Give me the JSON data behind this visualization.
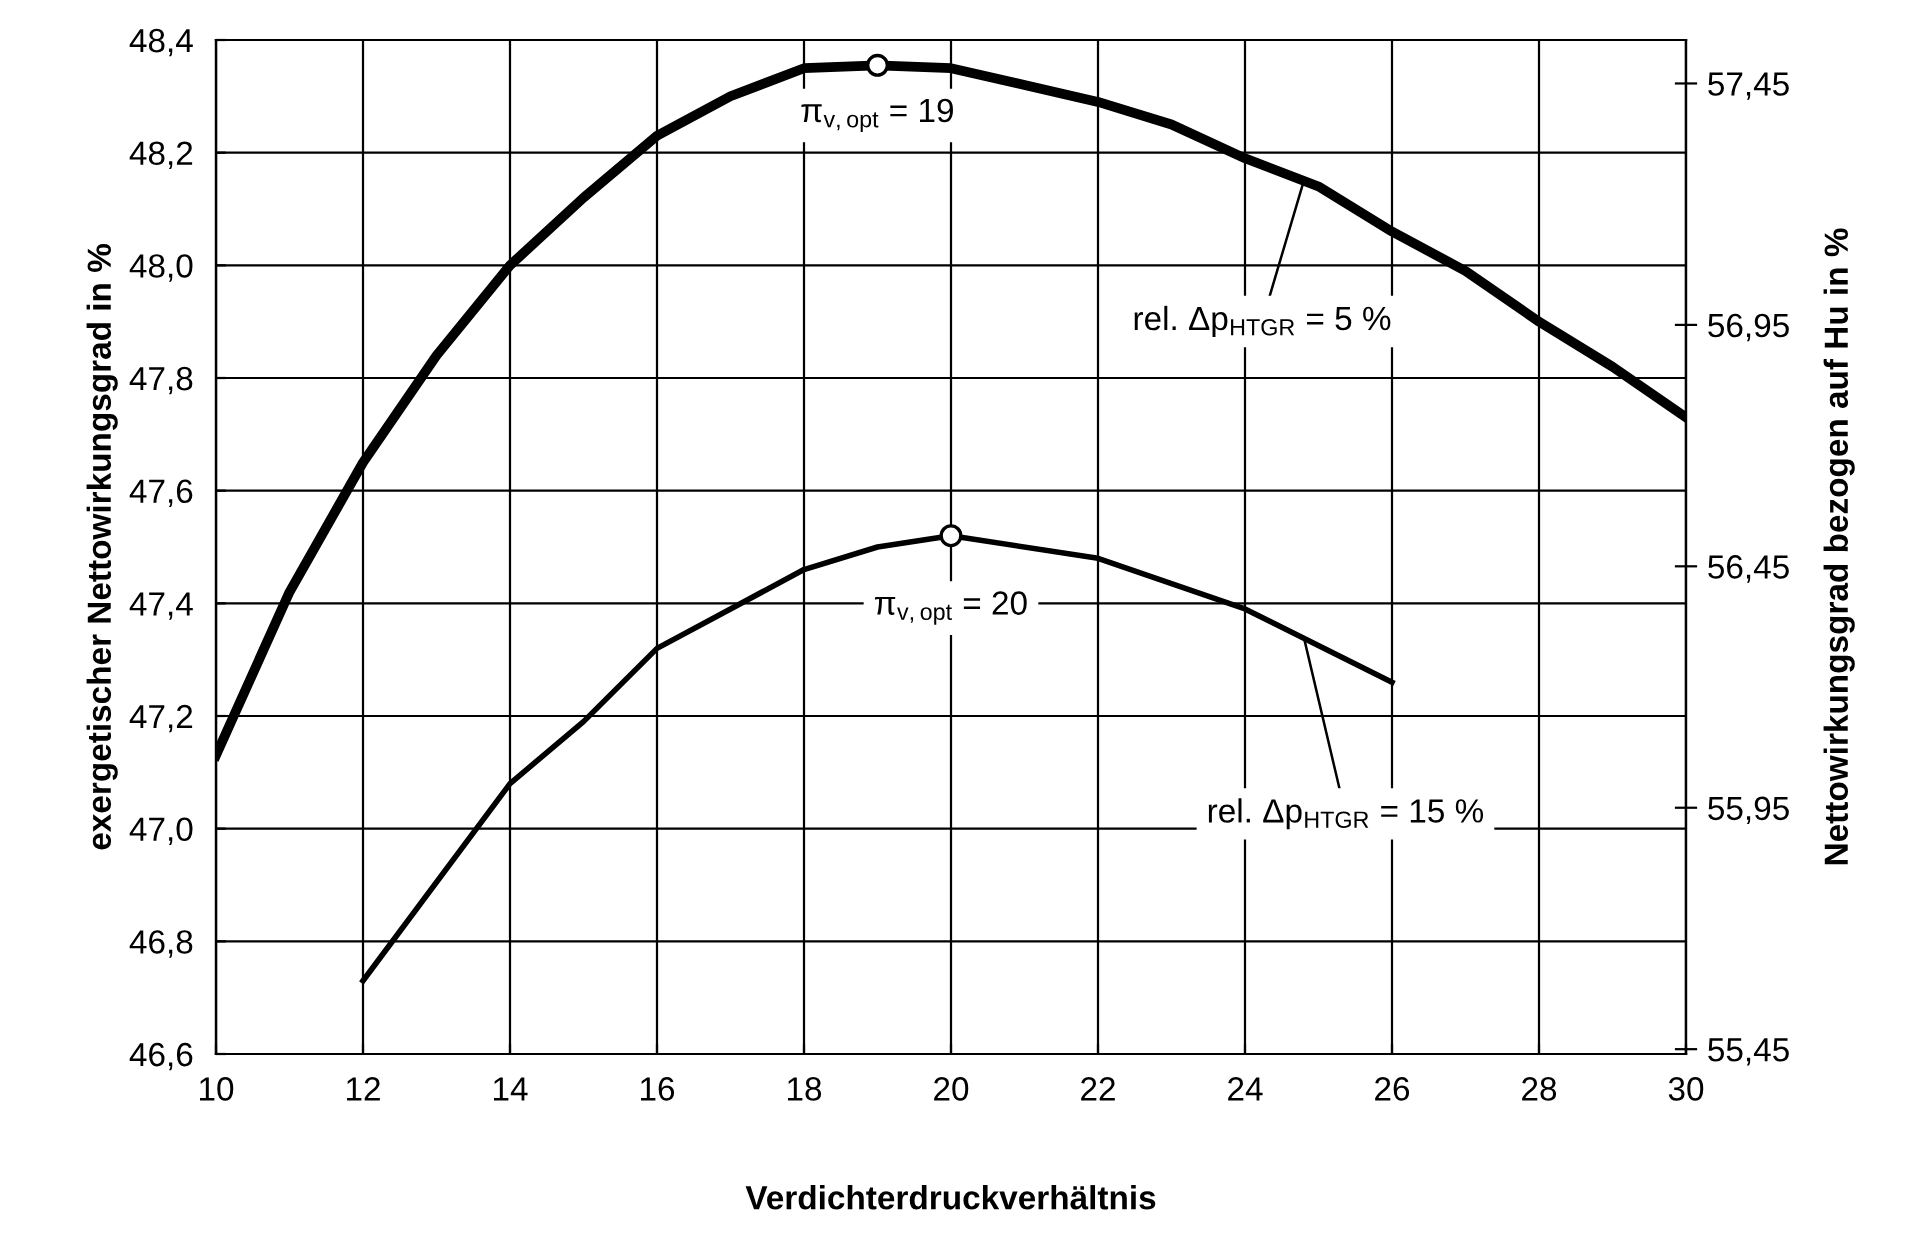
{
  "chart_data": {
    "type": "line",
    "xlabel": "Verdichterdruckverhältnis",
    "ylabel": "exergetischer Nettowirkungsgrad in %",
    "y2label": "Nettowirkungsgrad bezogen auf Hu in %",
    "xlim": [
      10,
      30
    ],
    "xticks": [
      10,
      12,
      14,
      16,
      18,
      20,
      22,
      24,
      26,
      28,
      30
    ],
    "ylim": [
      46.6,
      48.4
    ],
    "yticks": [
      {
        "value": 46.6,
        "label": "46,6"
      },
      {
        "value": 46.8,
        "label": "46,8"
      },
      {
        "value": 47.0,
        "label": "47,0"
      },
      {
        "value": 47.2,
        "label": "47,2"
      },
      {
        "value": 47.4,
        "label": "47,4"
      },
      {
        "value": 47.6,
        "label": "47,6"
      },
      {
        "value": 47.8,
        "label": "47,8"
      },
      {
        "value": 48.0,
        "label": "48,0"
      },
      {
        "value": 48.2,
        "label": "48,2"
      },
      {
        "value": 48.4,
        "label": "48,4"
      }
    ],
    "y2lim": [
      55.44,
      57.54
    ],
    "y2ticks": [
      {
        "value": 55.45,
        "label": "55,45"
      },
      {
        "value": 55.95,
        "label": "55,95"
      },
      {
        "value": 56.45,
        "label": "56,45"
      },
      {
        "value": 56.95,
        "label": "56,95"
      },
      {
        "value": 57.45,
        "label": "57,45"
      }
    ],
    "grid": true,
    "legend": false,
    "series": [
      {
        "color": "#000000",
        "x": [
          10,
          11,
          12,
          13,
          14,
          15,
          16,
          17,
          18,
          19,
          20,
          21,
          22,
          23,
          24,
          25,
          26,
          27,
          28,
          29,
          30
        ],
        "values": [
          47.13,
          47.42,
          47.65,
          47.84,
          48.0,
          48.12,
          48.23,
          48.3,
          48.35,
          48.355,
          48.35,
          48.32,
          48.29,
          48.25,
          48.19,
          48.14,
          48.06,
          47.99,
          47.9,
          47.82,
          47.73
        ]
      },
      {
        "color": "#000000",
        "x": [
          12,
          14,
          15,
          16,
          17,
          18,
          19,
          20,
          22,
          24,
          26
        ],
        "values": [
          46.73,
          47.08,
          47.19,
          47.32,
          47.39,
          47.46,
          47.5,
          47.52,
          47.48,
          47.39,
          47.26
        ]
      },
      {
        "type": "scatter",
        "color": "#000000",
        "marker": "circle",
        "x": [
          19,
          20
        ],
        "values": [
          48.355,
          47.52
        ]
      }
    ],
    "annotations": [
      {
        "text": "π$_{v,opt}$ = 19",
        "x": 19,
        "y": 48.355
      },
      {
        "text": "π$_{v,opt}$ = 20",
        "x": 20,
        "y": 47.52
      },
      {
        "text": "rel. Δp$_{HTGR}$ = 5 %",
        "x": 24.8,
        "y": 48.15
      },
      {
        "text": "rel. Δp$_{HTGR}$ = 15 %",
        "x": 24.8,
        "y": 47.34
      }
    ]
  }
}
